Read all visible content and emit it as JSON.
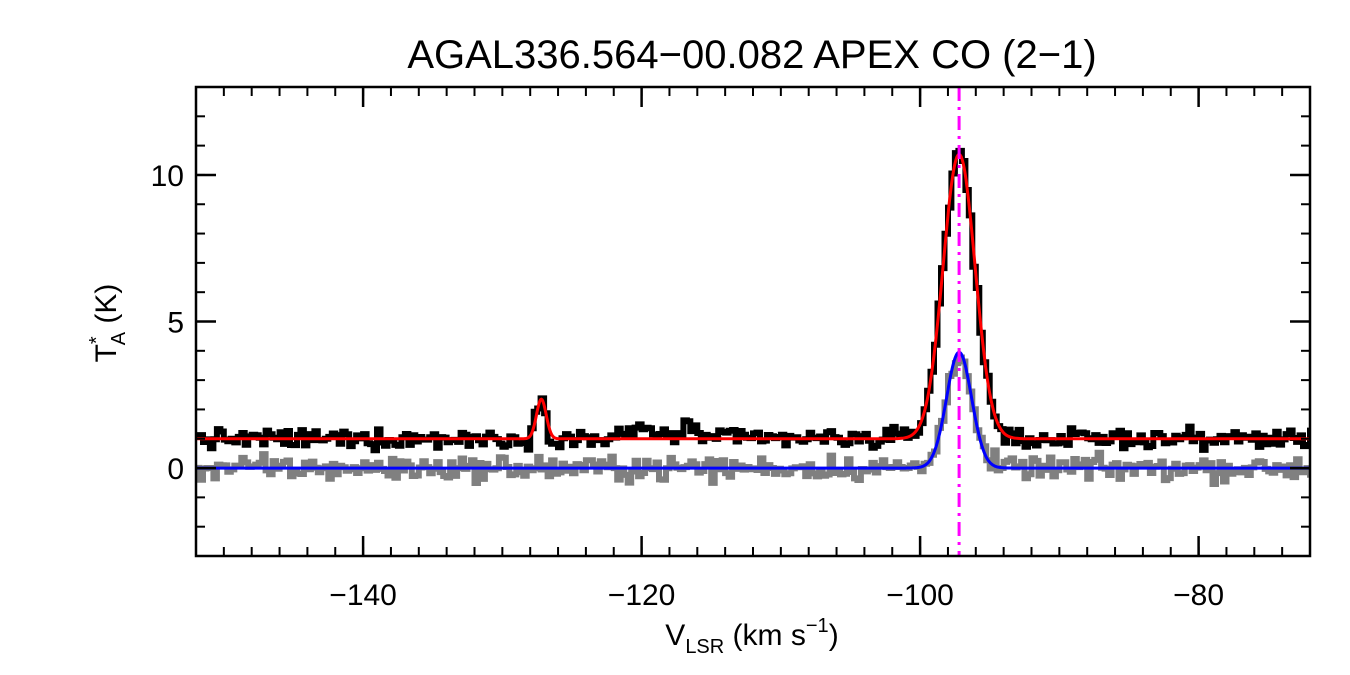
{
  "chart_data": {
    "type": "line",
    "title": "AGAL336.564−00.082  APEX CO (2−1)",
    "xlabel": {
      "main": "V",
      "sub": "LSR",
      "unit_prefix": " (km s",
      "unit_sup": "−1",
      "unit_suffix": ")"
    },
    "ylabel": {
      "main": "T",
      "sup": "*",
      "sub": "A",
      "unit": " (K)"
    },
    "xlim": [
      -152,
      -72
    ],
    "ylim": [
      -3,
      13
    ],
    "xticks": [
      {
        "value": -140,
        "label": "−140"
      },
      {
        "value": -120,
        "label": "−120"
      },
      {
        "value": -100,
        "label": "−100"
      },
      {
        "value": -80,
        "label": "−80"
      }
    ],
    "yticks": [
      {
        "value": 0,
        "label": "0"
      },
      {
        "value": 5,
        "label": "5"
      },
      {
        "value": 10,
        "label": "10"
      }
    ],
    "x_minor_step": 2,
    "y_minor_step": 1,
    "vline": {
      "x": -97.2,
      "color": "#ff00ff",
      "style": "dash-dot"
    },
    "series": [
      {
        "kind": "spectrum-step",
        "offset": 1.0,
        "color": "#000000",
        "step": 0.25,
        "noise": 0.16,
        "components": [
          {
            "center": -97.2,
            "amplitude": 9.7,
            "sigma": 1.15
          },
          {
            "center": -127.2,
            "amplitude": 1.35,
            "sigma": 0.35
          },
          {
            "center": -119.8,
            "amplitude": 0.35,
            "sigma": 0.9
          },
          {
            "center": -116.6,
            "amplitude": 0.3,
            "sigma": 0.9
          }
        ]
      },
      {
        "kind": "fit-line",
        "offset": 1.0,
        "color": "#ff0000",
        "components": [
          {
            "center": -97.2,
            "amplitude": 9.7,
            "sigma": 1.15
          },
          {
            "center": -127.2,
            "amplitude": 1.35,
            "sigma": 0.35
          }
        ]
      },
      {
        "kind": "spectrum-step",
        "offset": 0.0,
        "color": "#808080",
        "step": 0.25,
        "noise": 0.2,
        "components": [
          {
            "center": -97.2,
            "amplitude": 4.0,
            "sigma": 0.9
          }
        ]
      },
      {
        "kind": "fit-line",
        "offset": 0.0,
        "color": "#0000ff",
        "components": [
          {
            "center": -97.2,
            "amplitude": 3.95,
            "sigma": 0.9
          }
        ]
      }
    ]
  }
}
